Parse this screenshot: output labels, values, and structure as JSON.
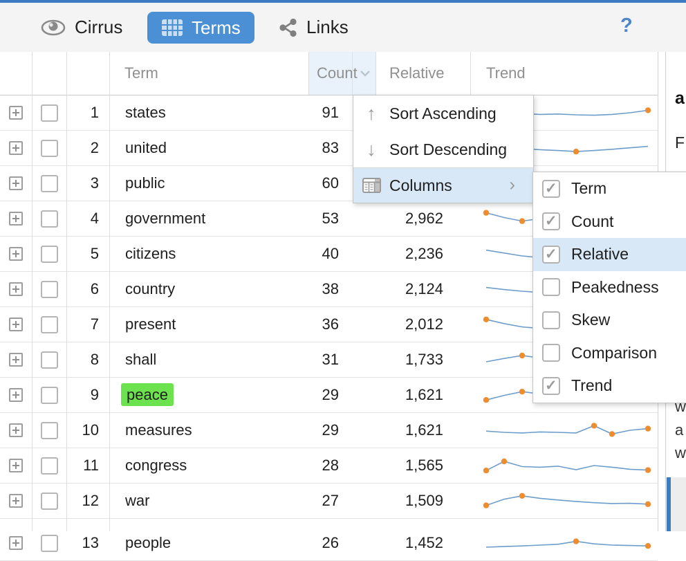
{
  "toolbar": {
    "tabs": [
      {
        "label": "Cirrus",
        "icon": "eye"
      },
      {
        "label": "Terms",
        "icon": "table-grid",
        "active": true
      },
      {
        "label": "Links",
        "icon": "share"
      }
    ],
    "help_label": "?"
  },
  "colors": {
    "accent_blue": "#4b90d4",
    "menu_highlight": "#d9e8f7",
    "term_highlight_green": "#6ce24e",
    "sparkline_line": "#6d9dcb",
    "sparkline_dot": "#ee8c30",
    "selection_bar": "#3e7cc0"
  },
  "table": {
    "columns": [
      {
        "label": "Term"
      },
      {
        "label": "Count",
        "hovered": true,
        "icon": "chevron-down"
      },
      {
        "label": "Relative"
      },
      {
        "label": "Trend"
      }
    ],
    "rows": [
      {
        "num": "1",
        "term": "states",
        "count": "91",
        "relative": "",
        "trend": {
          "points": [
            45,
            50,
            46,
            42,
            44,
            40,
            38,
            42,
            50,
            62
          ],
          "dots": [
            9
          ]
        }
      },
      {
        "num": "2",
        "term": "united",
        "count": "83",
        "relative": "",
        "trend": {
          "points": [
            58,
            52,
            47,
            42,
            38,
            33,
            38,
            44,
            51,
            58
          ],
          "dots": [
            5
          ]
        }
      },
      {
        "num": "3",
        "term": "public",
        "count": "60",
        "relative": "",
        "trend": {
          "points": [
            70,
            58,
            48,
            44,
            42,
            40,
            39,
            38,
            37,
            36
          ],
          "dots": [
            0
          ]
        }
      },
      {
        "num": "4",
        "term": "government",
        "count": "53",
        "relative": "2,962",
        "trend": {
          "points": [
            78,
            55,
            38,
            50,
            58,
            60,
            57,
            54,
            51,
            49
          ],
          "dots": [
            0,
            2
          ]
        }
      },
      {
        "num": "5",
        "term": "citizens",
        "count": "40",
        "relative": "2,236",
        "trend": {
          "points": [
            68,
            54,
            40,
            32,
            42,
            48,
            45,
            42,
            40,
            38
          ],
          "dots": []
        }
      },
      {
        "num": "6",
        "term": "country",
        "count": "38",
        "relative": "2,124",
        "trend": {
          "points": [
            58,
            48,
            40,
            34,
            42,
            47,
            44,
            41,
            39,
            37
          ],
          "dots": []
        }
      },
      {
        "num": "7",
        "term": "present",
        "count": "36",
        "relative": "2,012",
        "trend": {
          "points": [
            74,
            54,
            38,
            31,
            41,
            47,
            44,
            41,
            38,
            36
          ],
          "dots": [
            0
          ]
        }
      },
      {
        "num": "8",
        "term": "shall",
        "count": "31",
        "relative": "1,733",
        "trend": {
          "points": [
            40,
            56,
            70,
            59,
            52,
            48,
            45,
            43,
            41,
            40
          ],
          "dots": [
            2
          ]
        }
      },
      {
        "num": "9",
        "term": "peace",
        "count": "29",
        "relative": "1,621",
        "highlight": true,
        "trend": {
          "points": [
            26,
            48,
            66,
            55,
            48,
            44,
            42,
            40,
            38,
            37
          ],
          "dots": [
            0,
            2
          ]
        }
      },
      {
        "num": "10",
        "term": "measures",
        "count": "29",
        "relative": "1,621",
        "trend": {
          "points": [
            46,
            40,
            37,
            42,
            40,
            37,
            72,
            32,
            50,
            58
          ],
          "dots": [
            6,
            7,
            9
          ]
        }
      },
      {
        "num": "11",
        "term": "congress",
        "count": "28",
        "relative": "1,565",
        "trend": {
          "points": [
            26,
            70,
            45,
            42,
            47,
            30,
            50,
            42,
            32,
            28
          ],
          "dots": [
            0,
            1,
            9
          ]
        }
      },
      {
        "num": "12",
        "term": "war",
        "count": "27",
        "relative": "1,509",
        "trend": {
          "points": [
            28,
            58,
            74,
            62,
            54,
            47,
            41,
            37,
            38,
            34
          ],
          "dots": [
            0,
            2,
            9
          ]
        }
      },
      {
        "num": "13",
        "term": "people",
        "count": "26",
        "relative": "1,452",
        "partial": true,
        "trend": {
          "points": [
            30,
            33,
            36,
            40,
            44,
            58,
            46,
            40,
            38,
            36
          ],
          "dots": [
            5,
            9
          ]
        }
      }
    ]
  },
  "context_menu": {
    "items": [
      {
        "label": "Sort Ascending",
        "icon": "arrow-up"
      },
      {
        "label": "Sort Descending",
        "icon": "arrow-down"
      },
      {
        "label": "Columns",
        "icon": "columns",
        "highlighted": true,
        "has_submenu": true
      }
    ],
    "submenu_arrow": "›",
    "arrow_up": "↑",
    "arrow_down": "↓"
  },
  "columns_submenu": {
    "items": [
      {
        "label": "Term",
        "checked": true
      },
      {
        "label": "Count",
        "checked": true
      },
      {
        "label": "Relative",
        "checked": true,
        "highlighted": true
      },
      {
        "label": "Peakedness",
        "checked": false
      },
      {
        "label": "Skew",
        "checked": false
      },
      {
        "label": "Comparison",
        "checked": false
      },
      {
        "label": "Trend",
        "checked": true
      }
    ]
  },
  "right_panel": {
    "fragment_top_1": "a",
    "fragment_top_2": "F",
    "fragment_lines": [
      "w",
      "a",
      "w"
    ]
  }
}
